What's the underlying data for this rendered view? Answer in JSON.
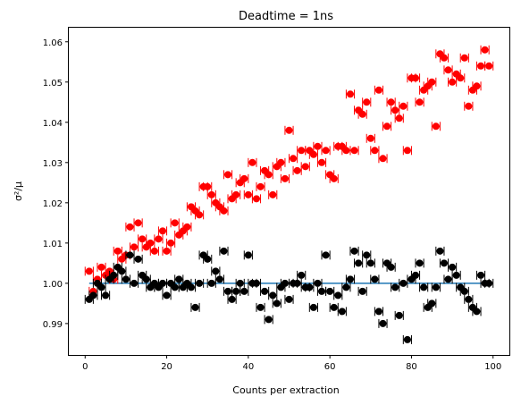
{
  "chart_data": {
    "type": "scatter",
    "title": "Deadtime = 1ns",
    "xlabel": "Counts per extraction",
    "ylabel": "σ²/μ",
    "xlim": [
      -4,
      104
    ],
    "ylim": [
      0.9822,
      1.0635
    ],
    "xticks": [
      0,
      20,
      40,
      60,
      80,
      100
    ],
    "yticks": [
      0.99,
      1.0,
      1.01,
      1.02,
      1.03,
      1.04,
      1.05,
      1.06
    ],
    "ytick_labels": [
      "0.99",
      "1.00",
      "1.01",
      "1.02",
      "1.03",
      "1.04",
      "1.05",
      "1.06"
    ],
    "grid": false,
    "reference_line": {
      "y": 1.0,
      "x_range": [
        1,
        99
      ],
      "color": "#1f77b4"
    },
    "series": [
      {
        "color": "#ff0000",
        "x": [
          1,
          2,
          3,
          4,
          5,
          6,
          7,
          8,
          9,
          10,
          11,
          12,
          13,
          14,
          15,
          16,
          17,
          18,
          19,
          20,
          21,
          22,
          23,
          24,
          25,
          26,
          27,
          28,
          29,
          30,
          31,
          32,
          33,
          34,
          35,
          36,
          37,
          38,
          39,
          40,
          41,
          42,
          43,
          44,
          45,
          46,
          47,
          48,
          49,
          50,
          51,
          52,
          53,
          54,
          55,
          56,
          57,
          58,
          59,
          60,
          61,
          62,
          63,
          64,
          65,
          66,
          67,
          68,
          69,
          70,
          71,
          72,
          73,
          74,
          75,
          76,
          77,
          78,
          79,
          80,
          81,
          82,
          83,
          84,
          85,
          86,
          87,
          88,
          89,
          90,
          91,
          92,
          93,
          94,
          95,
          96,
          97,
          98,
          99
        ],
        "y": [
          1.003,
          0.998,
          1.001,
          1.004,
          1.002,
          1.003,
          1.001,
          1.008,
          1.006,
          1.007,
          1.014,
          1.009,
          1.015,
          1.011,
          1.009,
          1.01,
          1.008,
          1.011,
          1.013,
          1.008,
          1.01,
          1.015,
          1.012,
          1.013,
          1.014,
          1.019,
          1.018,
          1.017,
          1.024,
          1.024,
          1.022,
          1.02,
          1.019,
          1.018,
          1.027,
          1.021,
          1.022,
          1.025,
          1.026,
          1.022,
          1.03,
          1.021,
          1.024,
          1.028,
          1.027,
          1.022,
          1.029,
          1.03,
          1.026,
          1.038,
          1.031,
          1.028,
          1.033,
          1.029,
          1.033,
          1.032,
          1.034,
          1.03,
          1.033,
          1.027,
          1.026,
          1.034,
          1.034,
          1.033,
          1.047,
          1.033,
          1.043,
          1.042,
          1.045,
          1.036,
          1.033,
          1.048,
          1.031,
          1.039,
          1.045,
          1.043,
          1.041,
          1.044,
          1.033,
          1.051,
          1.051,
          1.045,
          1.048,
          1.049,
          1.05,
          1.039,
          1.057,
          1.056,
          1.053,
          1.05,
          1.052,
          1.051,
          1.056,
          1.044,
          1.048,
          1.049,
          1.054,
          1.058,
          1.054
        ]
      },
      {
        "color": "#000000",
        "x": [
          1,
          2,
          3,
          4,
          5,
          6,
          7,
          8,
          9,
          10,
          11,
          12,
          13,
          14,
          15,
          16,
          17,
          18,
          19,
          20,
          21,
          22,
          23,
          24,
          25,
          26,
          27,
          28,
          29,
          30,
          31,
          32,
          33,
          34,
          35,
          36,
          37,
          38,
          39,
          40,
          41,
          42,
          43,
          44,
          45,
          46,
          47,
          48,
          49,
          50,
          51,
          52,
          53,
          54,
          55,
          56,
          57,
          58,
          59,
          60,
          61,
          62,
          63,
          64,
          65,
          66,
          67,
          68,
          69,
          70,
          71,
          72,
          73,
          74,
          75,
          76,
          77,
          78,
          79,
          80,
          81,
          82,
          83,
          84,
          85,
          86,
          87,
          88,
          89,
          90,
          91,
          92,
          93,
          94,
          95,
          96,
          97,
          98,
          99
        ],
        "y": [
          0.996,
          0.997,
          1.0,
          0.999,
          0.997,
          1.001,
          1.002,
          1.004,
          1.003,
          1.001,
          1.007,
          1.0,
          1.006,
          1.002,
          1.001,
          0.999,
          1.0,
          0.999,
          1.0,
          0.997,
          1.0,
          0.999,
          1.001,
          0.999,
          1.0,
          0.999,
          0.994,
          1.0,
          1.007,
          1.006,
          1.0,
          1.003,
          1.001,
          1.008,
          0.998,
          0.996,
          0.998,
          1.0,
          0.998,
          1.007,
          1.0,
          1.0,
          0.994,
          0.998,
          0.991,
          0.997,
          0.995,
          0.999,
          1.0,
          0.996,
          1.0,
          1.0,
          1.002,
          0.999,
          0.999,
          0.994,
          1.0,
          0.998,
          1.007,
          0.998,
          0.994,
          0.997,
          0.993,
          0.999,
          1.001,
          1.008,
          1.005,
          0.998,
          1.007,
          1.005,
          1.001,
          0.993,
          0.99,
          1.005,
          1.004,
          0.999,
          0.992,
          1.0,
          0.986,
          1.001,
          1.002,
          1.005,
          0.999,
          0.994,
          0.995,
          0.999,
          1.008,
          1.005,
          1.001,
          1.004,
          1.002,
          0.999,
          0.998,
          0.996,
          0.994,
          0.993,
          1.002,
          1.0,
          1.0
        ]
      }
    ]
  }
}
